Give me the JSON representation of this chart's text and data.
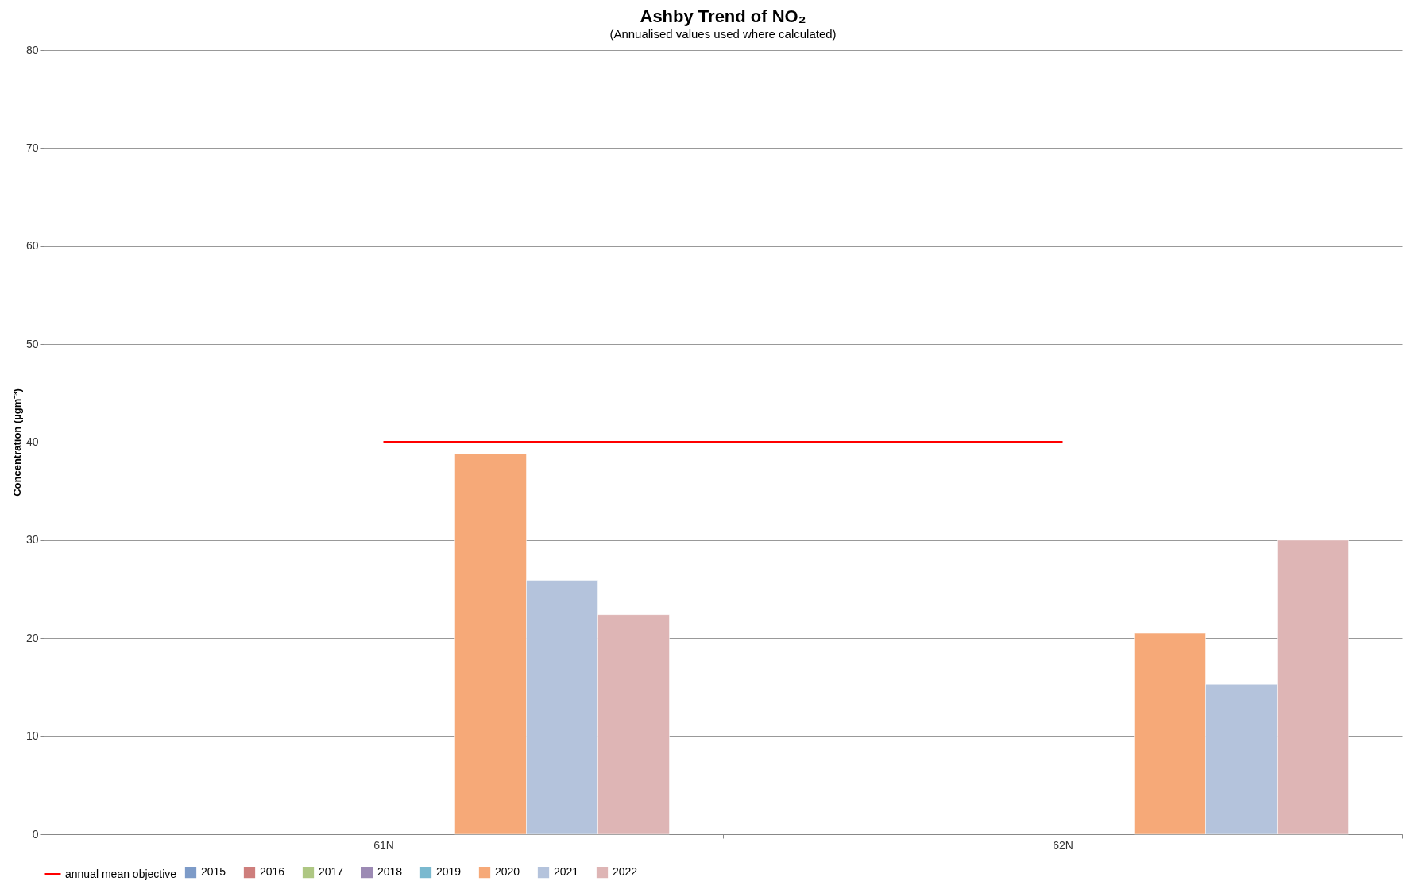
{
  "chart_data": {
    "type": "bar",
    "title": "Ashby Trend of NO₂",
    "subtitle": "(Annualised values used where calculated)",
    "ylabel": "Concentration (µgm⁻³)",
    "categories": [
      "61N",
      "62N"
    ],
    "series": [
      {
        "name": "2015",
        "color": "#7d9bc8",
        "values": [
          null,
          null
        ]
      },
      {
        "name": "2016",
        "color": "#ce7e7c",
        "values": [
          null,
          null
        ]
      },
      {
        "name": "2017",
        "color": "#aec783",
        "values": [
          null,
          null
        ]
      },
      {
        "name": "2018",
        "color": "#9c8ab4",
        "values": [
          null,
          null
        ]
      },
      {
        "name": "2019",
        "color": "#7ab9cf",
        "values": [
          null,
          null
        ]
      },
      {
        "name": "2020",
        "color": "#f6a978",
        "values": [
          38.8,
          20.5
        ]
      },
      {
        "name": "2021",
        "color": "#b4c3dc",
        "values": [
          25.9,
          15.3
        ]
      },
      {
        "name": "2022",
        "color": "#deb5b5",
        "values": [
          22.4,
          30.0
        ]
      },
      {
        "name": "annual mean objective",
        "type": "line",
        "color": "#ff0000",
        "values": [
          40,
          40
        ]
      }
    ],
    "ylim": [
      0,
      80
    ],
    "yticks": [
      0,
      10,
      20,
      30,
      40,
      50,
      60,
      70,
      80
    ],
    "grid": "y",
    "legend": "bottom"
  }
}
